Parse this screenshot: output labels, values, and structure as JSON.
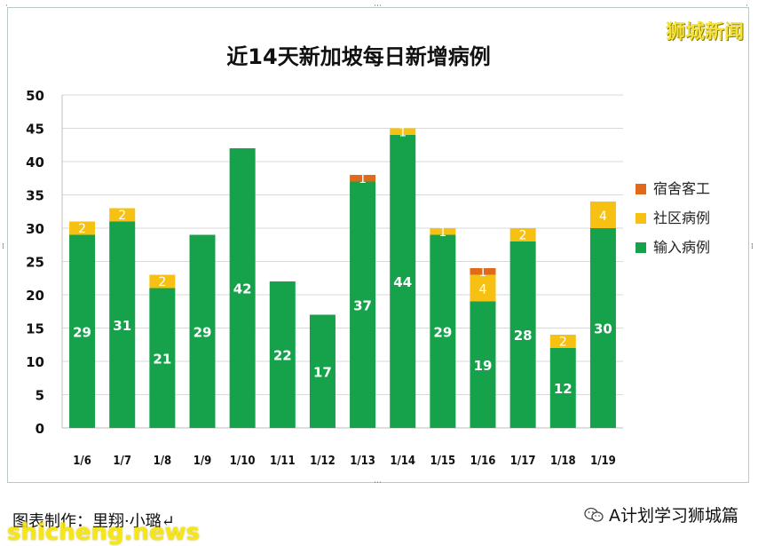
{
  "brand": "狮城新闻",
  "credit": "图表制作：里翔·小璐↵",
  "watermark": "shicheng.news",
  "account": "A计划学习狮城篇",
  "chart_data": {
    "type": "bar",
    "stacked": true,
    "title": "近14天新加坡每日新增病例",
    "categories": [
      "1/6",
      "1/7",
      "1/8",
      "1/9",
      "1/10",
      "1/11",
      "1/12",
      "1/13",
      "1/14",
      "1/15",
      "1/16",
      "1/17",
      "1/18",
      "1/19"
    ],
    "series": [
      {
        "name": "输入病例",
        "color": "#15a24a",
        "values": [
          29,
          31,
          21,
          29,
          42,
          22,
          17,
          37,
          44,
          29,
          19,
          28,
          12,
          30
        ]
      },
      {
        "name": "社区病例",
        "color": "#f6c112",
        "values": [
          2,
          2,
          2,
          0,
          0,
          0,
          0,
          0,
          1,
          1,
          4,
          2,
          2,
          4
        ]
      },
      {
        "name": "宿舍客工",
        "color": "#e06a1b",
        "values": [
          0,
          0,
          0,
          0,
          0,
          0,
          0,
          1,
          0,
          0,
          1,
          0,
          0,
          0
        ]
      }
    ],
    "legend_order": [
      "宿舍客工",
      "社区病例",
      "输入病例"
    ],
    "ylim": [
      0,
      50
    ],
    "yticks": [
      0,
      5,
      10,
      15,
      20,
      25,
      30,
      35,
      40,
      45,
      50
    ],
    "grid": true,
    "legend": "right"
  }
}
